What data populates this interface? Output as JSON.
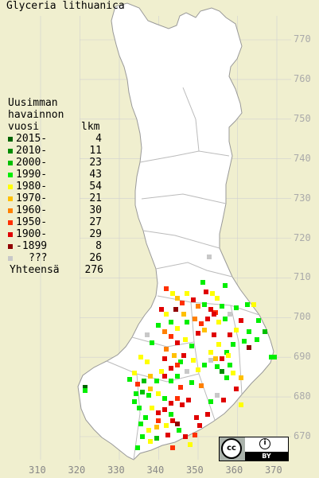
{
  "title": "Glyceria lithuanica",
  "legend": {
    "header": [
      "Uusimman",
      "havainnon",
      "vuosi"
    ],
    "count_header": "lkm",
    "rows": [
      {
        "label": "2015-",
        "count": "4",
        "color": "#006400"
      },
      {
        "label": "2010-",
        "count": "11",
        "color": "#008c00"
      },
      {
        "label": "2000-",
        "count": "23",
        "color": "#00c000"
      },
      {
        "label": "1990-",
        "count": "43",
        "color": "#00ee00"
      },
      {
        "label": "1980-",
        "count": "54",
        "color": "#ffff00"
      },
      {
        "label": "1970-",
        "count": "21",
        "color": "#ffc000"
      },
      {
        "label": "1960-",
        "count": "30",
        "color": "#ff8000"
      },
      {
        "label": "1950-",
        "count": "27",
        "color": "#ff3000"
      },
      {
        "label": "1900-",
        "count": "29",
        "color": "#e00000"
      },
      {
        "label": "-1899",
        "count": "8",
        "color": "#900000"
      },
      {
        "label": "???",
        "count": "26",
        "color": "#c8c8c8"
      }
    ],
    "total_label": "Yhteensä",
    "total_count": "276"
  },
  "y_ticks": [
    "770",
    "760",
    "750",
    "740",
    "730",
    "720",
    "710",
    "700",
    "690",
    "680",
    "670"
  ],
  "x_ticks": [
    "310",
    "320",
    "330",
    "340",
    "350",
    "360",
    "370"
  ],
  "license": {
    "cc": "cc",
    "by": "BY"
  },
  "colors": {
    "background": "#f0efcf",
    "land": "#ffffff",
    "grid": "#c8c8c8",
    "borders": "#bbbbbb"
  }
}
